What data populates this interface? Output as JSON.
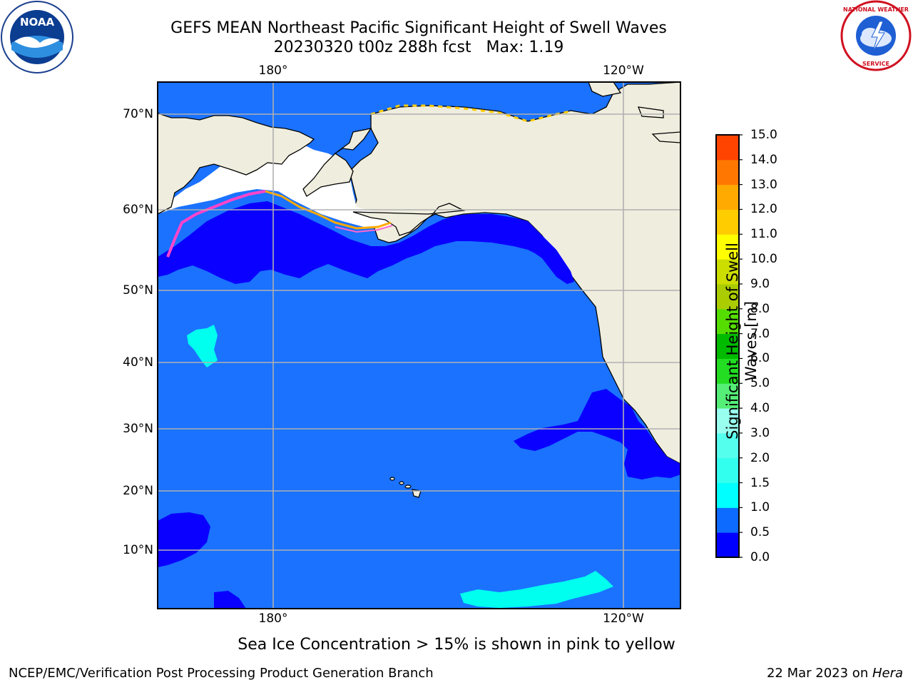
{
  "title": {
    "line1": "GEFS MEAN Northeast Pacific Significant Height of Swell Waves",
    "line2": "20230320 t00z 288h fcst   Max: 1.19"
  },
  "logos": {
    "left": {
      "name": "noaa-logo",
      "text": "NOAA"
    },
    "right": {
      "name": "national-weather-service-logo",
      "text": "NATIONAL WEATHER SERVICE"
    }
  },
  "map": {
    "lon_labels": [
      "180°",
      "120°W"
    ],
    "lat_labels": [
      "70°N",
      "60°N",
      "50°N",
      "40°N",
      "30°N",
      "20°N",
      "10°N"
    ],
    "colors": {
      "ocean": "#1a72ff",
      "ocean_dark": "#0a00ff",
      "land": "#efedde",
      "ice": "#ffffff",
      "cyan": "#00ffef",
      "grid": "#b0b0b0"
    }
  },
  "colorbar": {
    "label": "Significant Height of Swell Waves [m]",
    "ticks": [
      "0.0",
      "0.5",
      "1.0",
      "1.5",
      "2.0",
      "3.0",
      "4.0",
      "5.0",
      "6.0",
      "7.0",
      "8.0",
      "9.0",
      "10.0",
      "11.0",
      "12.0",
      "13.0",
      "14.0",
      "15.0"
    ],
    "colors": [
      "#0000ff",
      "#0d6bff",
      "#00ffff",
      "#33ffee",
      "#55ffee",
      "#99ffee",
      "#55ee77",
      "#22dd22",
      "#00bb00",
      "#55dd00",
      "#aacc00",
      "#ccdd00",
      "#ffff00",
      "#ffcc00",
      "#ffaa00",
      "#ff7700",
      "#ff4400",
      "#ff0000"
    ]
  },
  "note": "Sea Ice Concentration > 15% is shown in pink to yellow",
  "footer": {
    "left": "NCEP/EMC/Verification Post Processing Product Generation Branch",
    "right_date": "22 Mar 2023 on ",
    "right_host": "Hera"
  }
}
